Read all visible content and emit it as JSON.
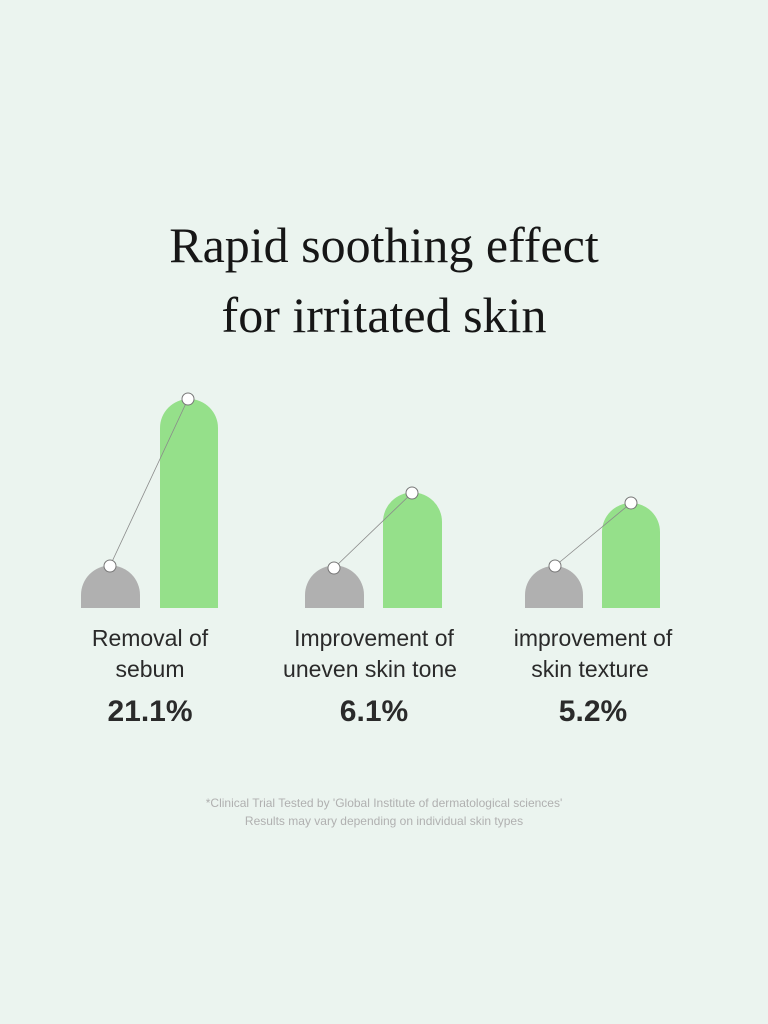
{
  "title": [
    "Rapid soothing effect",
    "for irritated skin"
  ],
  "items": [
    {
      "label": [
        "Removal of",
        "sebum"
      ],
      "value": "21.1%"
    },
    {
      "label": [
        "Improvement of",
        "uneven skin tone"
      ],
      "value": "6.1%"
    },
    {
      "label": [
        "improvement of",
        "skin texture"
      ],
      "value": "5.2%"
    }
  ],
  "footnote": [
    "*Clinical Trial Tested by 'Global Institute of dermatological sciences'",
    "Results may vary depending on individual skin types"
  ]
}
